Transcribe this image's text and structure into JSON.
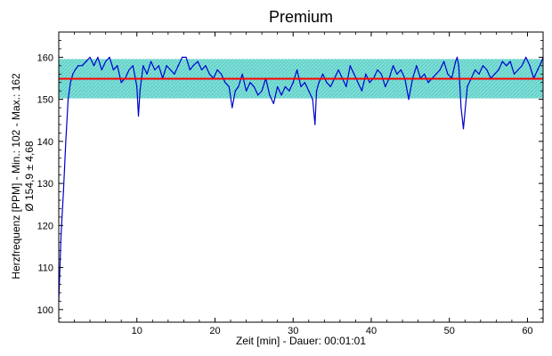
{
  "chart_data": {
    "type": "line",
    "title": "Premium",
    "xlabel": "Zeit [min] - Dauer: 00:01:01",
    "ylabel_line1": "Herzfrequenz [PPM] - Min.: 102 - Max.: 162",
    "ylabel_line2": "Ø 154,9 ± 4,68",
    "xlim": [
      0,
      62
    ],
    "ylim": [
      97,
      166
    ],
    "x_ticks": [
      10,
      20,
      30,
      40,
      50,
      60
    ],
    "y_ticks": [
      100,
      110,
      120,
      130,
      140,
      150,
      160
    ],
    "mean": 154.9,
    "std": 4.68,
    "band": [
      150.22,
      159.58
    ],
    "colors": {
      "line": "#0000cc",
      "mean_line": "#ff0000",
      "band": "#7ee0d8",
      "band_hatch": "#5cc8c0"
    },
    "series": [
      {
        "x": [
          0,
          0.3,
          0.6,
          0.9,
          1.2,
          1.5,
          1.8,
          2.1,
          2.5,
          3,
          3.5,
          4,
          4.5,
          5,
          5.5,
          6,
          6.5,
          7,
          7.5,
          8,
          8.5,
          9,
          9.5,
          10,
          10.2,
          10.4,
          10.8,
          11.3,
          11.8,
          12.3,
          12.8,
          13.3,
          13.8,
          14.3,
          14.8,
          15.3,
          15.8,
          16.3,
          16.8,
          17.2,
          17.8,
          18.3,
          18.8,
          19.3,
          19.8,
          20.3,
          20.8,
          21.3,
          21.8,
          22.2,
          22.6,
          23,
          23.5,
          24,
          24.5,
          25,
          25.5,
          26,
          26.5,
          27,
          27.5,
          28,
          28.5,
          29,
          29.5,
          30,
          30.5,
          31,
          31.5,
          32,
          32.5,
          32.8,
          33,
          33.3,
          33.8,
          34.3,
          34.8,
          35.3,
          35.8,
          36.3,
          36.8,
          37.3,
          37.8,
          38.3,
          38.8,
          39.3,
          39.8,
          40.3,
          40.8,
          41.3,
          41.8,
          42.3,
          42.8,
          43.3,
          43.8,
          44.3,
          44.8,
          45.3,
          45.8,
          46.3,
          46.8,
          47.3,
          47.8,
          48.3,
          48.8,
          49.3,
          49.8,
          50.3,
          50.8,
          51,
          51.2,
          51.5,
          51.8,
          52.3,
          52.8,
          53.3,
          53.8,
          54.3,
          54.8,
          55.3,
          55.8,
          56.3,
          56.8,
          57.3,
          57.8,
          58.3,
          58.8,
          59.3,
          59.8,
          60.3,
          60.8,
          61.3,
          61.8,
          62
        ],
        "y": [
          102,
          118,
          128,
          140,
          150,
          154,
          156,
          157,
          158,
          158,
          159,
          160,
          158,
          160,
          157,
          159,
          160,
          157,
          158,
          154,
          155,
          157,
          158,
          153,
          146,
          152,
          158,
          156,
          159,
          157,
          158,
          155,
          158,
          157,
          156,
          158,
          160,
          160,
          157,
          158,
          159,
          157,
          158,
          156,
          155,
          157,
          156,
          154,
          153,
          148,
          152,
          153,
          156,
          152,
          154,
          153,
          151,
          152,
          155,
          151,
          149,
          153,
          151,
          153,
          152,
          154,
          157,
          153,
          154,
          152,
          150,
          144,
          152,
          154,
          156,
          154,
          153,
          155,
          157,
          155,
          153,
          158,
          156,
          154,
          152,
          156,
          154,
          155,
          157,
          156,
          153,
          155,
          158,
          156,
          157,
          155,
          150,
          155,
          158,
          155,
          156,
          154,
          155,
          156,
          157,
          159,
          156,
          155,
          159,
          160,
          158,
          148,
          143,
          153,
          155,
          157,
          156,
          158,
          157,
          155,
          156,
          157,
          159,
          158,
          159,
          156,
          157,
          158,
          160,
          158,
          155,
          157,
          159,
          160
        ]
      }
    ]
  }
}
